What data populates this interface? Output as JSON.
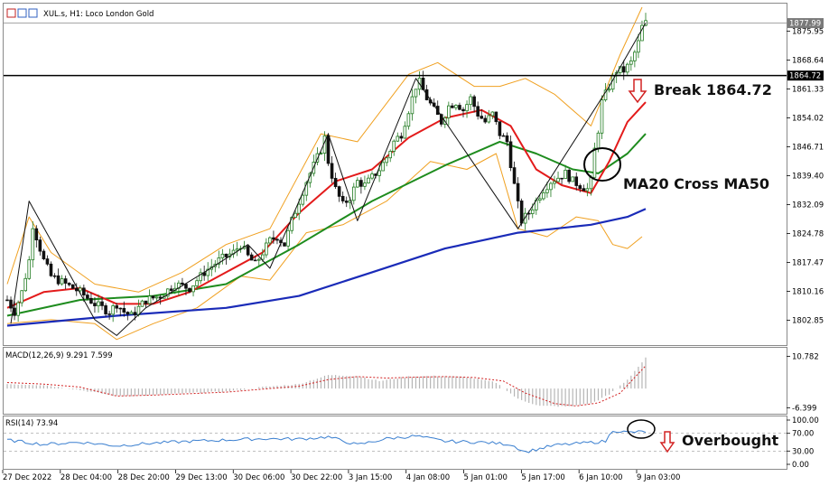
{
  "window": {
    "symbol_title": "XUL.s, H1:  Loco London Gold"
  },
  "annotations": {
    "break": "Break 1864.72",
    "cross": "MA20 Cross MA50",
    "overbought": "Overbought"
  },
  "colors": {
    "bull": "#1f7a1f",
    "bear": "#111111",
    "ma20": "#e31b1b",
    "ma50": "#1e8c1e",
    "ma200": "#1a2bb8",
    "bands": "#f0a020",
    "zigzag": "#111111",
    "macd_hist": "#b5b5b5",
    "macd_signal": "#d22222",
    "rsi": "#3a7fd0",
    "arrow": "#d22222",
    "current_price": "#7a7a7a"
  },
  "chart_data": [
    {
      "type": "candlestick",
      "title": "XUL.s, H1:  Loco London Gold",
      "y_ticks": [
        "1875.95",
        "1868.64",
        "1861.33",
        "1854.02",
        "1846.71",
        "1839.40",
        "1832.09",
        "1824.78",
        "1817.47",
        "1810.16",
        "1802.85"
      ],
      "ylim": [
        1797.5,
        1882.0
      ],
      "x_ticks": [
        "27 Dec 2022",
        "28 Dec 04:00",
        "28 Dec 20:00",
        "29 Dec 13:00",
        "30 Dec 06:00",
        "30 Dec 22:00",
        "3 Jan 15:00",
        "4 Jan 08:00",
        "5 Jan 01:00",
        "5 Jan 17:00",
        "6 Jan 10:00",
        "9 Jan 03:00"
      ],
      "horizontal_line": {
        "value": 1864.72,
        "label": "1864.72"
      },
      "current_price": {
        "value": 1877.99,
        "label": "1877.99"
      },
      "close_path": [
        [
          0,
          1808
        ],
        [
          2,
          1805
        ],
        [
          4,
          1810
        ],
        [
          6,
          1818
        ],
        [
          7,
          1827
        ],
        [
          8,
          1824
        ],
        [
          10,
          1818
        ],
        [
          12,
          1814
        ],
        [
          16,
          1812
        ],
        [
          20,
          1810
        ],
        [
          24,
          1807
        ],
        [
          26,
          1806
        ],
        [
          28,
          1805
        ],
        [
          30,
          1807
        ],
        [
          32,
          1805
        ],
        [
          34,
          1804
        ],
        [
          36,
          1806
        ],
        [
          38,
          1808
        ],
        [
          42,
          1809
        ],
        [
          46,
          1812
        ],
        [
          50,
          1811
        ],
        [
          54,
          1815
        ],
        [
          58,
          1818
        ],
        [
          62,
          1820
        ],
        [
          64,
          1822
        ],
        [
          66,
          1819
        ],
        [
          68,
          1817
        ],
        [
          70,
          1820
        ],
        [
          72,
          1823
        ],
        [
          74,
          1824
        ],
        [
          76,
          1822
        ],
        [
          78,
          1828
        ],
        [
          80,
          1833
        ],
        [
          82,
          1838
        ],
        [
          84,
          1842
        ],
        [
          86,
          1846
        ],
        [
          87,
          1849
        ],
        [
          88,
          1843
        ],
        [
          90,
          1836
        ],
        [
          92,
          1832
        ],
        [
          94,
          1834
        ],
        [
          96,
          1838
        ],
        [
          98,
          1837
        ],
        [
          100,
          1839
        ],
        [
          102,
          1841
        ],
        [
          104,
          1844
        ],
        [
          106,
          1848
        ],
        [
          108,
          1850
        ],
        [
          110,
          1856
        ],
        [
          112,
          1862
        ],
        [
          113,
          1863
        ],
        [
          115,
          1859
        ],
        [
          117,
          1856
        ],
        [
          119,
          1853
        ],
        [
          121,
          1857
        ],
        [
          123,
          1858
        ],
        [
          125,
          1856
        ],
        [
          127,
          1859
        ],
        [
          129,
          1855
        ],
        [
          131,
          1853
        ],
        [
          133,
          1855
        ],
        [
          135,
          1850
        ],
        [
          137,
          1848
        ],
        [
          139,
          1837
        ],
        [
          140,
          1832
        ],
        [
          141,
          1828
        ],
        [
          143,
          1830
        ],
        [
          145,
          1833
        ],
        [
          147,
          1836
        ],
        [
          149,
          1838
        ],
        [
          151,
          1839
        ],
        [
          153,
          1840
        ],
        [
          155,
          1838
        ],
        [
          157,
          1837
        ],
        [
          159,
          1836
        ],
        [
          160,
          1838
        ],
        [
          161,
          1846
        ],
        [
          162,
          1851
        ],
        [
          163,
          1858
        ],
        [
          165,
          1862
        ],
        [
          167,
          1866
        ],
        [
          169,
          1866
        ],
        [
          171,
          1868
        ],
        [
          173,
          1873
        ],
        [
          174,
          1877
        ],
        [
          175,
          1878
        ]
      ],
      "series": [
        {
          "name": "MA20",
          "type": "line",
          "points": [
            [
              0,
              1806
            ],
            [
              10,
              1810
            ],
            [
              20,
              1811
            ],
            [
              30,
              1807
            ],
            [
              40,
              1807
            ],
            [
              50,
              1810
            ],
            [
              60,
              1815
            ],
            [
              70,
              1820
            ],
            [
              80,
              1830
            ],
            [
              90,
              1838
            ],
            [
              100,
              1841
            ],
            [
              110,
              1849
            ],
            [
              120,
              1854
            ],
            [
              130,
              1856
            ],
            [
              138,
              1852
            ],
            [
              145,
              1841
            ],
            [
              152,
              1837
            ],
            [
              160,
              1835
            ],
            [
              165,
              1843
            ],
            [
              170,
              1853
            ],
            [
              175,
              1858
            ]
          ]
        },
        {
          "name": "MA50",
          "type": "line",
          "points": [
            [
              0,
              1804
            ],
            [
              20,
              1808
            ],
            [
              40,
              1809
            ],
            [
              60,
              1812
            ],
            [
              80,
              1822
            ],
            [
              100,
              1833
            ],
            [
              120,
              1842
            ],
            [
              135,
              1848
            ],
            [
              145,
              1845
            ],
            [
              155,
              1841
            ],
            [
              162,
              1840
            ],
            [
              170,
              1845
            ],
            [
              175,
              1850
            ]
          ]
        },
        {
          "name": "MA200",
          "type": "line",
          "points": [
            [
              0,
              1801.5
            ],
            [
              30,
              1804
            ],
            [
              60,
              1806
            ],
            [
              80,
              1809
            ],
            [
              100,
              1815
            ],
            [
              120,
              1821
            ],
            [
              140,
              1825
            ],
            [
              160,
              1827
            ],
            [
              170,
              1829
            ],
            [
              175,
              1831
            ]
          ]
        },
        {
          "name": "BB upper",
          "type": "line",
          "points": [
            [
              0,
              1812
            ],
            [
              6,
              1829
            ],
            [
              12,
              1820
            ],
            [
              24,
              1812
            ],
            [
              36,
              1810
            ],
            [
              48,
              1815
            ],
            [
              60,
              1822
            ],
            [
              72,
              1826
            ],
            [
              86,
              1850
            ],
            [
              96,
              1848
            ],
            [
              110,
              1865
            ],
            [
              118,
              1868
            ],
            [
              128,
              1862
            ],
            [
              135,
              1862
            ],
            [
              142,
              1864
            ],
            [
              150,
              1860
            ],
            [
              160,
              1852
            ],
            [
              168,
              1870
            ],
            [
              174,
              1882
            ]
          ]
        },
        {
          "name": "BB lower",
          "type": "line",
          "points": [
            [
              0,
              1802
            ],
            [
              12,
              1803
            ],
            [
              24,
              1802
            ],
            [
              30,
              1798
            ],
            [
              40,
              1802
            ],
            [
              52,
              1806
            ],
            [
              64,
              1814
            ],
            [
              72,
              1813
            ],
            [
              82,
              1825
            ],
            [
              92,
              1827
            ],
            [
              104,
              1833
            ],
            [
              116,
              1843
            ],
            [
              126,
              1841
            ],
            [
              134,
              1845
            ],
            [
              140,
              1826
            ],
            [
              148,
              1824
            ],
            [
              156,
              1829
            ],
            [
              162,
              1828
            ],
            [
              166,
              1822
            ],
            [
              170,
              1821
            ],
            [
              174,
              1824
            ]
          ]
        },
        {
          "name": "ZigZag",
          "type": "line",
          "points": [
            [
              1,
              1802
            ],
            [
              6,
              1833
            ],
            [
              24,
              1803
            ],
            [
              30,
              1799
            ],
            [
              38,
              1806
            ],
            [
              54,
              1815
            ],
            [
              66,
              1822
            ],
            [
              72,
              1816
            ],
            [
              88,
              1850
            ],
            [
              96,
              1828
            ],
            [
              112,
              1864
            ],
            [
              140,
              1826
            ],
            [
              165,
              1862
            ],
            [
              175,
              1878
            ]
          ]
        }
      ]
    },
    {
      "type": "bar",
      "title": "MACD(12,26,9) 9.291 7.599",
      "y_ticks": [
        "10.782",
        "-6.399"
      ],
      "ylim": [
        -7.5,
        11.5
      ],
      "histogram_path": [
        [
          0,
          1.5
        ],
        [
          10,
          1.2
        ],
        [
          20,
          -0.5
        ],
        [
          30,
          -2.5
        ],
        [
          40,
          -2.2
        ],
        [
          50,
          -1.5
        ],
        [
          60,
          -1.0
        ],
        [
          70,
          0.5
        ],
        [
          80,
          1.5
        ],
        [
          88,
          4.5
        ],
        [
          96,
          4.2
        ],
        [
          102,
          2.5
        ],
        [
          110,
          4.0
        ],
        [
          118,
          4.2
        ],
        [
          126,
          3.8
        ],
        [
          134,
          2.0
        ],
        [
          140,
          -3.5
        ],
        [
          146,
          -5.8
        ],
        [
          154,
          -6.0
        ],
        [
          160,
          -5.0
        ],
        [
          165,
          -2.0
        ],
        [
          170,
          3.0
        ],
        [
          175,
          10.2
        ]
      ],
      "signal_path": [
        [
          0,
          2.0
        ],
        [
          10,
          1.5
        ],
        [
          20,
          0.5
        ],
        [
          30,
          -2.5
        ],
        [
          40,
          -2.2
        ],
        [
          50,
          -1.7
        ],
        [
          60,
          -1.2
        ],
        [
          70,
          -0.2
        ],
        [
          80,
          0.8
        ],
        [
          88,
          3.0
        ],
        [
          96,
          4.0
        ],
        [
          104,
          3.5
        ],
        [
          112,
          3.8
        ],
        [
          120,
          4.0
        ],
        [
          128,
          3.7
        ],
        [
          136,
          2.5
        ],
        [
          142,
          -1.5
        ],
        [
          150,
          -5.0
        ],
        [
          156,
          -5.8
        ],
        [
          162,
          -4.8
        ],
        [
          168,
          -1.5
        ],
        [
          175,
          7.6
        ]
      ]
    },
    {
      "type": "line",
      "title": "RSI(14) 73.94",
      "y_ticks": [
        "100.00",
        "70.00",
        "30.00",
        "0.00"
      ],
      "ylim": [
        0,
        100
      ],
      "levels": [
        70,
        30
      ],
      "rsi_path": [
        [
          0,
          55
        ],
        [
          10,
          45
        ],
        [
          20,
          50
        ],
        [
          30,
          42
        ],
        [
          40,
          48
        ],
        [
          50,
          52
        ],
        [
          60,
          55
        ],
        [
          70,
          58
        ],
        [
          80,
          57
        ],
        [
          88,
          62
        ],
        [
          96,
          44
        ],
        [
          104,
          58
        ],
        [
          112,
          64
        ],
        [
          120,
          52
        ],
        [
          130,
          50
        ],
        [
          138,
          45
        ],
        [
          142,
          28
        ],
        [
          150,
          43
        ],
        [
          158,
          48
        ],
        [
          164,
          52
        ],
        [
          166,
          77
        ],
        [
          170,
          72
        ],
        [
          175,
          74
        ]
      ]
    }
  ]
}
